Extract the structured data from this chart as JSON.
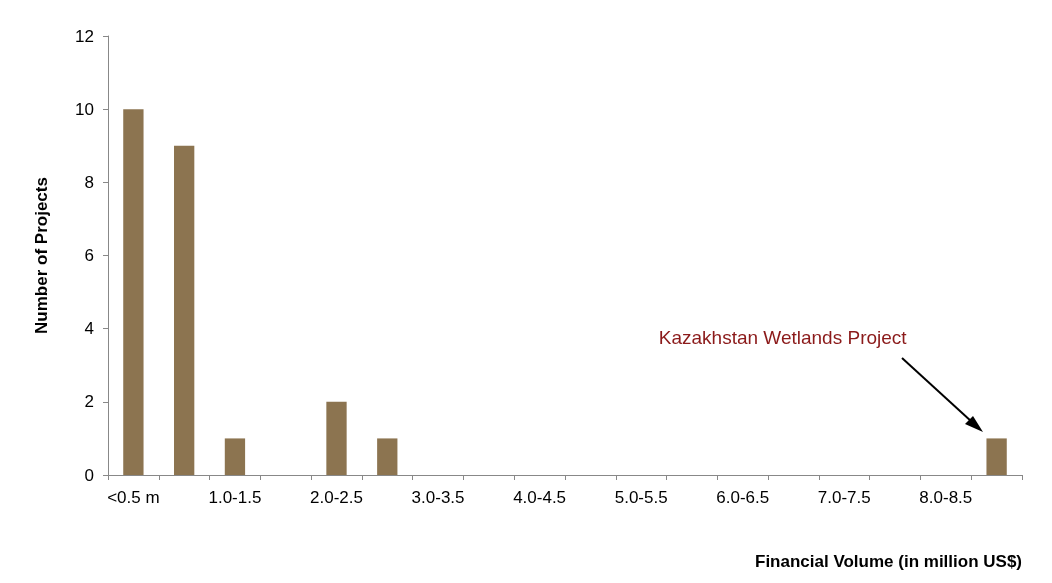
{
  "chart_data": {
    "type": "bar",
    "xlabel": "Financial Volume (in million US$)",
    "ylabel": "Number of Projects",
    "categories": [
      "<0.5 m",
      null,
      "1.0-1.5",
      null,
      "2.0-2.5",
      null,
      "3.0-3.5",
      null,
      "4.0-4.5",
      null,
      "5.0-5.5",
      null,
      "6.0-6.5",
      null,
      "7.0-7.5",
      null,
      "8.0-8.5",
      null
    ],
    "values": [
      10,
      9,
      1,
      0,
      2,
      1,
      0,
      0,
      0,
      0,
      0,
      0,
      0,
      0,
      0,
      0,
      0,
      1
    ],
    "color": "#8c7450",
    "ylim": [
      0,
      12
    ],
    "yticks": [
      0,
      2,
      4,
      6,
      8,
      10,
      12
    ],
    "grid": false,
    "annotations": [
      "Kazakhstan Wetlands Project"
    ]
  }
}
